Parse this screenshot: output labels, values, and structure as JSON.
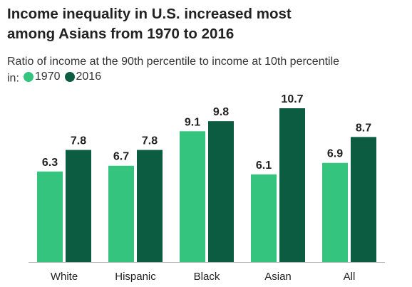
{
  "chart_data": {
    "type": "bar",
    "title": "Income inequality in U.S. increased most among Asians from 1970 to 2016",
    "subtitle": "Ratio of income at the 90th percentile to income at 10th percentile in:",
    "categories": [
      "White",
      "Hispanic",
      "Black",
      "Asian",
      "All"
    ],
    "series": [
      {
        "name": "1970",
        "color": "#35c47e",
        "values": [
          6.3,
          6.7,
          9.1,
          6.1,
          6.9
        ]
      },
      {
        "name": "2016",
        "color": "#0b5c40",
        "values": [
          7.8,
          7.8,
          9.8,
          10.7,
          8.7
        ]
      }
    ]
  }
}
